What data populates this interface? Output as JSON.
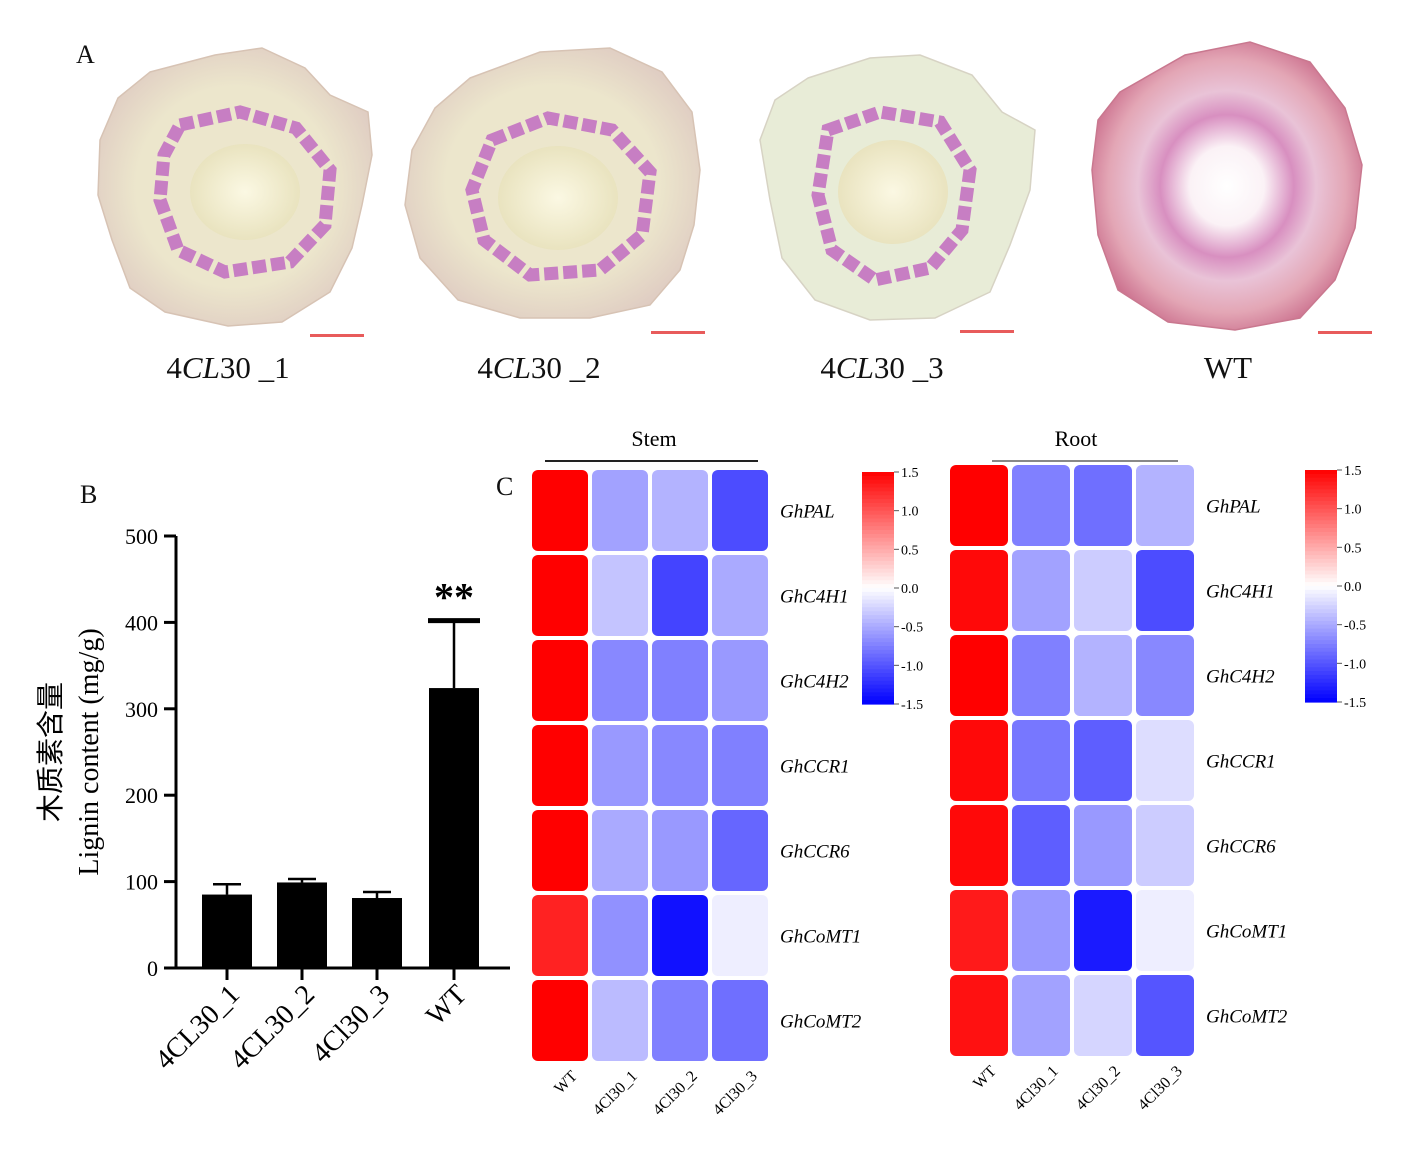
{
  "panels": {
    "a": "A",
    "b": "B",
    "c": "C"
  },
  "sections": [
    {
      "prefix": "4",
      "ital": "CL",
      "suffix": "30 _1"
    },
    {
      "prefix": "4",
      "ital": "CL",
      "suffix": "30 _2"
    },
    {
      "prefix": "4",
      "ital": "CL",
      "suffix": "30 _3"
    },
    {
      "prefix": "",
      "ital": "",
      "suffix": "WT"
    }
  ],
  "colors": {
    "high": "#ff0000",
    "mid": "#ffffff",
    "low": "#0000ff",
    "bar": "#000000",
    "scalebar": "#e85b5b"
  },
  "chart_data": [
    {
      "type": "bar",
      "ylabel_cn": "木质素含量",
      "ylabel": "Lignin content (mg/g)",
      "categories": [
        "4CL30_1",
        "4CL30_2",
        "4Cl30_3",
        "WT"
      ],
      "values": [
        85,
        99,
        81,
        324
      ],
      "errors": [
        12,
        4,
        7,
        78
      ],
      "ylim": [
        0,
        500
      ],
      "yticks": [
        0,
        100,
        200,
        300,
        400,
        500
      ],
      "annotations": [
        {
          "category": "WT",
          "text": "**"
        }
      ]
    },
    {
      "type": "heatmap",
      "title": "Stem",
      "columns": [
        "WT",
        "4Cl30_1",
        "4Cl30_2",
        "4Cl30_3"
      ],
      "rows": [
        "GhPAL",
        "GhC4H1",
        "GhC4H2",
        "GhCCR1",
        "GhCCR6",
        "GhCoMT1",
        "GhCoMT2"
      ],
      "values": [
        [
          1.5,
          -0.55,
          -0.45,
          -1.05
        ],
        [
          1.5,
          -0.35,
          -1.1,
          -0.5
        ],
        [
          1.5,
          -0.7,
          -0.75,
          -0.6
        ],
        [
          1.5,
          -0.6,
          -0.7,
          -0.75
        ],
        [
          1.5,
          -0.5,
          -0.6,
          -0.9
        ],
        [
          1.3,
          -0.65,
          -1.4,
          -0.1
        ],
        [
          1.5,
          -0.4,
          -0.75,
          -0.85
        ]
      ],
      "scale_ticks": [
        "1.5",
        "1.0",
        "0.5",
        "0.0",
        "-0.5",
        "-1.0",
        "-1.5"
      ],
      "vmin": -1.5,
      "vmax": 1.5
    },
    {
      "type": "heatmap",
      "title": "Root",
      "columns": [
        "WT",
        "4Cl30_1",
        "4Cl30_2",
        "4Cl30_3"
      ],
      "rows": [
        "GhPAL",
        "GhC4H1",
        "GhC4H2",
        "GhCCR1",
        "GhCCR6",
        "GhCoMT1",
        "GhCoMT2"
      ],
      "values": [
        [
          1.5,
          -0.75,
          -0.85,
          -0.45
        ],
        [
          1.45,
          -0.55,
          -0.3,
          -1.05
        ],
        [
          1.5,
          -0.75,
          -0.45,
          -0.7
        ],
        [
          1.45,
          -0.8,
          -0.95,
          -0.2
        ],
        [
          1.45,
          -0.95,
          -0.6,
          -0.3
        ],
        [
          1.35,
          -0.6,
          -1.35,
          -0.1
        ],
        [
          1.4,
          -0.55,
          -0.25,
          -1.0
        ]
      ],
      "scale_ticks": [
        "1.5",
        "1.0",
        "0.5",
        "0.0",
        "-0.5",
        "-1.0",
        "-1.5"
      ],
      "vmin": -1.5,
      "vmax": 1.5
    }
  ]
}
